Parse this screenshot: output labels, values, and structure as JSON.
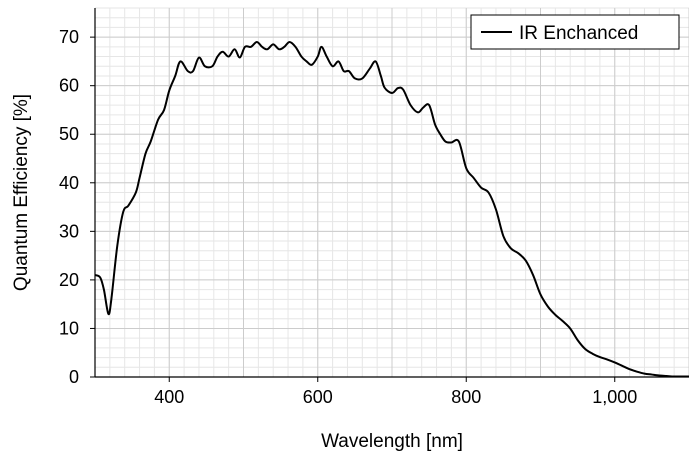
{
  "chart_data": {
    "type": "line",
    "xlabel": "Wavelength [nm]",
    "ylabel": "Quantum Efficiency [%]",
    "xlim": [
      300,
      1100
    ],
    "ylim": [
      0,
      76
    ],
    "xticks": [
      400,
      600,
      800,
      1000
    ],
    "xtick_labels": [
      "400",
      "600",
      "800",
      "1,000"
    ],
    "yticks": [
      0,
      10,
      20,
      30,
      40,
      50,
      60,
      70
    ],
    "ytick_labels": [
      "0",
      "10",
      "20",
      "30",
      "40",
      "50",
      "60",
      "70"
    ],
    "grid": true,
    "legend_position": "top-right",
    "series": [
      {
        "name": "IR Enchanced",
        "color": "#000000",
        "x": [
          300,
          307,
          312,
          318,
          322,
          330,
          338,
          345,
          355,
          360,
          368,
          375,
          385,
          393,
          400,
          408,
          415,
          425,
          432,
          440,
          448,
          458,
          465,
          472,
          480,
          488,
          495,
          502,
          510,
          518,
          525,
          532,
          540,
          548,
          555,
          562,
          570,
          578,
          585,
          592,
          600,
          605,
          612,
          620,
          628,
          635,
          642,
          650,
          660,
          670,
          678,
          685,
          690,
          700,
          708,
          715,
          725,
          735,
          742,
          750,
          758,
          765,
          772,
          780,
          790,
          800,
          810,
          820,
          830,
          840,
          850,
          860,
          870,
          880,
          890,
          900,
          910,
          920,
          930,
          940,
          950,
          960,
          970,
          980,
          990,
          1000,
          1010,
          1020,
          1030,
          1040,
          1050,
          1060,
          1070,
          1080,
          1090,
          1100
        ],
        "y": [
          21,
          20.5,
          18,
          13,
          16,
          27,
          34,
          35.3,
          38,
          41,
          46,
          48.5,
          53,
          55,
          59,
          62,
          65,
          63,
          63,
          65.8,
          64,
          64,
          66,
          67,
          66,
          67.5,
          65.8,
          68,
          68,
          69,
          68,
          67.5,
          68.5,
          67.5,
          68,
          69,
          68,
          66,
          65,
          64.3,
          66,
          68,
          66,
          64,
          65,
          63,
          63,
          61.5,
          61.5,
          63.5,
          65,
          62,
          59.6,
          58.5,
          59.5,
          59.2,
          56,
          54.5,
          55.5,
          56,
          52,
          50,
          48.5,
          48.3,
          48.5,
          43,
          41,
          39,
          38,
          34.5,
          29,
          26.5,
          25.5,
          24,
          21,
          17,
          14.5,
          12.8,
          11.5,
          10,
          7.6,
          5.8,
          4.8,
          4.1,
          3.6,
          3.0,
          2.3,
          1.6,
          1.1,
          0.7,
          0.5,
          0.3,
          0.2,
          0.1,
          0.1,
          0.1
        ]
      }
    ]
  }
}
